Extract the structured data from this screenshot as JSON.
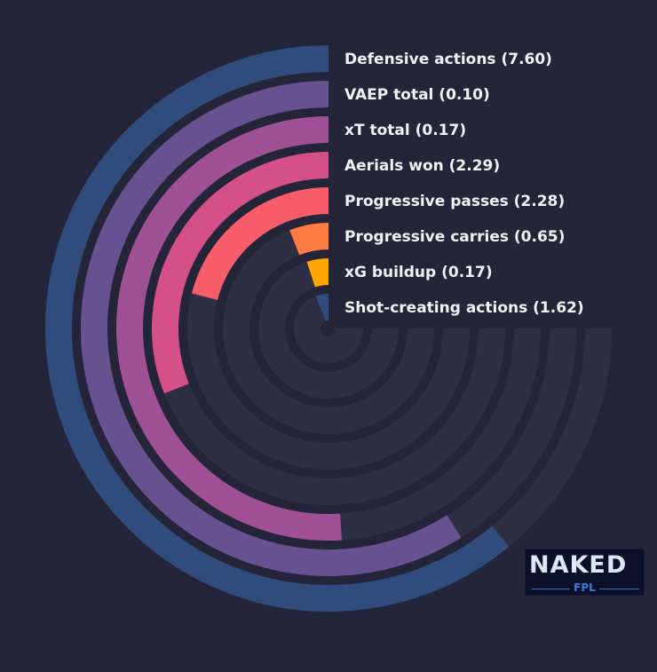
{
  "chart_data": {
    "type": "radial_bar",
    "title": "",
    "series": [
      {
        "label": "Defensive actions (7.60)",
        "value": 7.6,
        "fraction": 0.61,
        "color": "#2f4c7c"
      },
      {
        "label": "VAEP total (0.10)",
        "value": 0.1,
        "fraction": 0.59,
        "color": "#665191"
      },
      {
        "label": "xT total (0.17)",
        "value": 0.17,
        "fraction": 0.51,
        "color": "#a05195"
      },
      {
        "label": "Aerials won (2.29)",
        "value": 2.29,
        "fraction": 0.31,
        "color": "#d45087"
      },
      {
        "label": "Progressive passes (2.28)",
        "value": 2.28,
        "fraction": 0.21,
        "color": "#f95d6a"
      },
      {
        "label": "Progressive carries (0.65)",
        "value": 0.65,
        "fraction": 0.06,
        "color": "#ff7c43"
      },
      {
        "label": "xG buildup (0.17)",
        "value": 0.17,
        "fraction": 0.05,
        "color": "#ffa600"
      },
      {
        "label": "Shot-creating actions (1.62)",
        "value": 1.62,
        "fraction": 0.06,
        "color": "#2f4c7c"
      }
    ]
  },
  "colors": {
    "background": "#25253a",
    "track": "#2e2f44"
  },
  "logo": {
    "word": "NAKED",
    "sub": "FPL"
  }
}
